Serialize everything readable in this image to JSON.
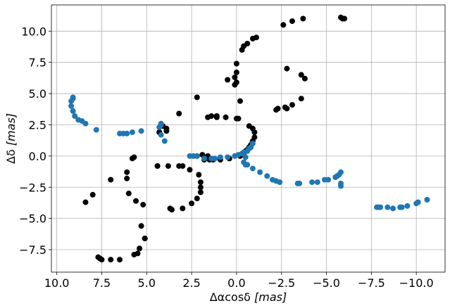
{
  "chart_data": {
    "type": "scatter",
    "title": "",
    "xlabel_main": "Δαcosδ ",
    "xlabel_unit": "[mas]",
    "ylabel_main": "Δδ ",
    "ylabel_unit": "[mas]",
    "xlim": [
      10.3,
      -11.6
    ],
    "ylim": [
      -9.3,
      12.1
    ],
    "grid": true,
    "xticks": [
      10.0,
      7.5,
      5.0,
      2.5,
      0.0,
      -2.5,
      -5.0,
      -7.5,
      -10.0
    ],
    "xtick_labels": [
      "10.0",
      "7.5",
      "5.0",
      "2.5",
      "0.0",
      "−2.5",
      "−5.0",
      "−7.5",
      "−10.0"
    ],
    "yticks": [
      -7.5,
      -5.0,
      -2.5,
      0.0,
      2.5,
      5.0,
      7.5,
      10.0
    ],
    "ytick_labels": [
      "−7.5",
      "−5.0",
      "−2.5",
      "0.0",
      "2.5",
      "5.0",
      "7.5",
      "10.0"
    ],
    "series": [
      {
        "color": "#000000",
        "points": [
          [
            7.7,
            -8.1
          ],
          [
            7.6,
            -8.2
          ],
          [
            7.5,
            -8.3
          ],
          [
            7.0,
            -8.3
          ],
          [
            6.5,
            -8.3
          ],
          [
            5.7,
            -7.9
          ],
          [
            5.4,
            -7.4
          ],
          [
            5.5,
            -7.8
          ],
          [
            5.1,
            -6.6
          ],
          [
            5.1,
            -6.6
          ],
          [
            5.3,
            -5.6
          ],
          [
            5.2,
            -3.9
          ],
          [
            5.6,
            -3.6
          ],
          [
            6.0,
            -3.0
          ],
          [
            6.1,
            -1.8
          ],
          [
            6.1,
            -1.3
          ],
          [
            5.8,
            -0.2
          ],
          [
            5.7,
            -0.1
          ],
          [
            7.0,
            -1.9
          ],
          [
            8.0,
            -3.1
          ],
          [
            8.4,
            -3.7
          ],
          [
            3.6,
            -4.3
          ],
          [
            3.7,
            -4.2
          ],
          [
            3.0,
            -4.2
          ],
          [
            2.5,
            -3.8
          ],
          [
            2.2,
            -3.4
          ],
          [
            2.0,
            -2.9
          ],
          [
            2.0,
            -2.5
          ],
          [
            2.0,
            -2.1
          ],
          [
            2.1,
            -1.5
          ],
          [
            2.6,
            -1.1
          ],
          [
            3.0,
            -0.8
          ],
          [
            3.2,
            -0.8
          ],
          [
            3.8,
            -0.8
          ],
          [
            4.4,
            -0.8
          ],
          [
            4.4,
            -0.8
          ],
          [
            2.2,
            0.0
          ],
          [
            1.9,
            0.1
          ],
          [
            1.6,
            0.0
          ],
          [
            1.8,
            -0.3
          ],
          [
            1.5,
            -0.3
          ],
          [
            1.3,
            -0.3
          ],
          [
            0.9,
            -0.3
          ],
          [
            0.4,
            -0.2
          ],
          [
            -0.2,
            0.0
          ],
          [
            -0.4,
            0.2
          ],
          [
            -0.5,
            0.4
          ],
          [
            -0.6,
            0.5
          ],
          [
            -0.7,
            0.7
          ],
          [
            -0.8,
            0.9
          ],
          [
            -0.9,
            1.2
          ],
          [
            -1.0,
            1.5
          ],
          [
            -1.0,
            1.9
          ],
          [
            -0.9,
            2.2
          ],
          [
            -0.7,
            2.4
          ],
          [
            -0.1,
            3.0
          ],
          [
            0.0,
            3.0
          ],
          [
            0.6,
            3.1
          ],
          [
            1.1,
            3.2
          ],
          [
            1.1,
            3.1
          ],
          [
            1.4,
            3.2
          ],
          [
            1.6,
            3.1
          ],
          [
            3.2,
            3.4
          ],
          [
            4.1,
            2.4
          ],
          [
            3.9,
            2.2
          ],
          [
            3.9,
            2.0
          ],
          [
            4.3,
            1.9
          ],
          [
            4.3,
            1.9
          ],
          [
            -0.2,
            4.4
          ],
          [
            0.0,
            5.9
          ],
          [
            0.1,
            5.7
          ],
          [
            0.1,
            6.3
          ],
          [
            0.0,
            6.7
          ],
          [
            0.0,
            7.4
          ],
          [
            0.5,
            6.1
          ],
          [
            2.2,
            4.7
          ],
          [
            -0.3,
            8.5
          ],
          [
            -0.4,
            8.8
          ],
          [
            -0.6,
            9.0
          ],
          [
            -0.9,
            9.4
          ],
          [
            -1.1,
            9.5
          ],
          [
            -2.2,
            3.7
          ],
          [
            -2.3,
            3.8
          ],
          [
            -2.7,
            3.9
          ],
          [
            -2.8,
            3.8
          ],
          [
            -3.1,
            4.1
          ],
          [
            -3.6,
            4.6
          ],
          [
            -3.6,
            6.5
          ],
          [
            -3.8,
            6.2
          ],
          [
            -2.8,
            7.0
          ],
          [
            -2.6,
            10.5
          ],
          [
            -3.1,
            10.8
          ],
          [
            -3.7,
            11.0
          ],
          [
            -5.8,
            11.1
          ],
          [
            -5.9,
            11.0
          ],
          [
            -6.0,
            11.0
          ]
        ]
      },
      {
        "color": "#1f77b4",
        "points": [
          [
            9.1,
            4.7
          ],
          [
            9.1,
            4.6
          ],
          [
            9.2,
            4.4
          ],
          [
            9.2,
            4.0
          ],
          [
            9.1,
            3.6
          ],
          [
            9.0,
            3.2
          ],
          [
            8.8,
            2.9
          ],
          [
            8.6,
            2.8
          ],
          [
            8.4,
            2.6
          ],
          [
            7.8,
            2.1
          ],
          [
            6.5,
            1.8
          ],
          [
            6.3,
            1.8
          ],
          [
            6.1,
            1.8
          ],
          [
            5.8,
            1.9
          ],
          [
            5.3,
            2.0
          ],
          [
            4.2,
            2.6
          ],
          [
            4.2,
            2.5
          ],
          [
            4.3,
            2.3
          ],
          [
            4.2,
            1.7
          ],
          [
            4.0,
            1.2
          ],
          [
            2.6,
            0.0
          ],
          [
            2.4,
            0.0
          ],
          [
            2.2,
            0.0
          ],
          [
            1.8,
            -0.2
          ],
          [
            1.4,
            -0.2
          ],
          [
            1.2,
            -0.2
          ],
          [
            0.9,
            -0.1
          ],
          [
            0.5,
            -0.1
          ],
          [
            0.1,
            0.0
          ],
          [
            -0.1,
            0.1
          ],
          [
            -0.3,
            0.2
          ],
          [
            -0.4,
            0.3
          ],
          [
            -0.6,
            0.4
          ],
          [
            -0.7,
            0.6
          ],
          [
            -0.8,
            0.7
          ],
          [
            -0.9,
            1.0
          ],
          [
            -0.5,
            -0.1
          ],
          [
            -0.4,
            -0.5
          ],
          [
            -0.5,
            -0.7
          ],
          [
            -0.6,
            -0.7
          ],
          [
            -0.9,
            -1.0
          ],
          [
            -1.3,
            -1.3
          ],
          [
            -1.7,
            -1.6
          ],
          [
            -2.0,
            -1.9
          ],
          [
            -2.2,
            -2.0
          ],
          [
            -2.4,
            -2.1
          ],
          [
            -3.4,
            -2.2
          ],
          [
            -3.5,
            -2.2
          ],
          [
            -4.2,
            -2.1
          ],
          [
            -4.5,
            -2.1
          ],
          [
            -4.9,
            -1.9
          ],
          [
            -5.1,
            -1.9
          ],
          [
            -5.5,
            -1.7
          ],
          [
            -5.6,
            -1.6
          ],
          [
            -5.7,
            -1.5
          ],
          [
            -5.8,
            -1.3
          ],
          [
            -5.8,
            -2.2
          ],
          [
            -5.8,
            -2.4
          ],
          [
            -7.8,
            -4.1
          ],
          [
            -7.9,
            -4.1
          ],
          [
            -8.0,
            -4.1
          ],
          [
            -8.4,
            -4.1
          ],
          [
            -8.7,
            -4.2
          ],
          [
            -9.1,
            -4.1
          ],
          [
            -9.2,
            -4.1
          ],
          [
            -9.5,
            -4.0
          ],
          [
            -10.0,
            -3.8
          ],
          [
            -10.1,
            -3.7
          ],
          [
            -10.6,
            -3.5
          ]
        ]
      }
    ]
  }
}
